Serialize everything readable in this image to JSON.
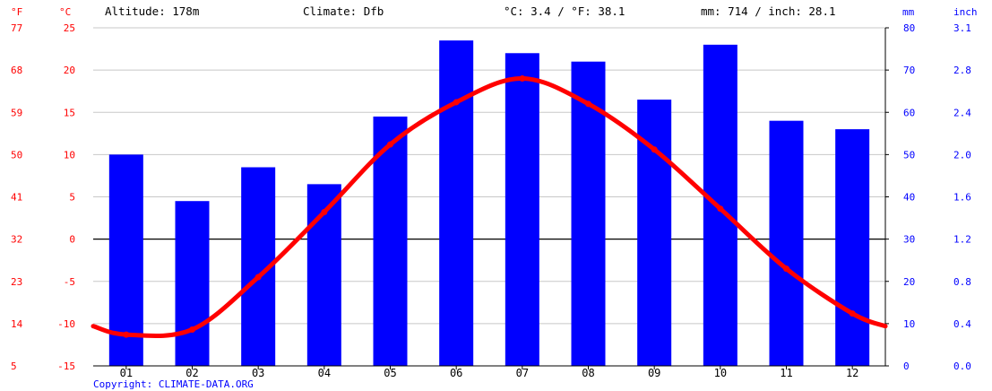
{
  "header": {
    "altitude": "Altitude: 178m",
    "climate": "Climate: Dfb",
    "temp_avg": "°C: 3.4 / °F: 38.1",
    "precip_total": "mm: 714 / inch: 28.1"
  },
  "units": {
    "fahrenheit": "°F",
    "celsius": "°C",
    "mm": "mm",
    "inch": "inch"
  },
  "footer": {
    "copyright": "Copyright: CLIMATE-DATA.ORG"
  },
  "colors": {
    "precipitation": "#0000ff",
    "temperature": "#ff0000",
    "grid": "#c8c8c8",
    "zero_line": "#000000"
  },
  "chart_data": {
    "type": "bar",
    "categories": [
      "01",
      "02",
      "03",
      "04",
      "05",
      "06",
      "07",
      "08",
      "09",
      "10",
      "11",
      "12"
    ],
    "series": [
      {
        "kind": "bar",
        "axis": "right",
        "values": [
          50,
          39,
          47,
          43,
          59,
          77,
          74,
          72,
          63,
          76,
          58,
          56
        ]
      },
      {
        "kind": "line",
        "axis": "left",
        "values": [
          -11.3,
          -10.7,
          -4.5,
          3.2,
          11.2,
          16.2,
          19.0,
          16.0,
          10.6,
          3.6,
          -3.5,
          -8.8
        ],
        "ends": [
          -10.3,
          -10.3
        ]
      }
    ],
    "y_left_celsius": {
      "ticks": [
        25,
        20,
        15,
        10,
        5,
        0,
        -5,
        -10,
        -15
      ],
      "range": [
        -15,
        25
      ]
    },
    "y_left_fahrenheit": {
      "ticks": [
        77,
        68,
        59,
        50,
        41,
        32,
        23,
        14,
        5
      ],
      "range": [
        5,
        77
      ]
    },
    "y_right_mm": {
      "ticks": [
        80,
        70,
        60,
        50,
        40,
        30,
        20,
        10,
        0
      ],
      "range": [
        0,
        80
      ]
    },
    "y_right_inch": {
      "ticks": [
        "3.1",
        "2.8",
        "2.4",
        "2.0",
        "1.6",
        "1.2",
        "0.8",
        "0.4",
        "0.0"
      ],
      "range": [
        0,
        3.1
      ]
    },
    "grid": true
  }
}
